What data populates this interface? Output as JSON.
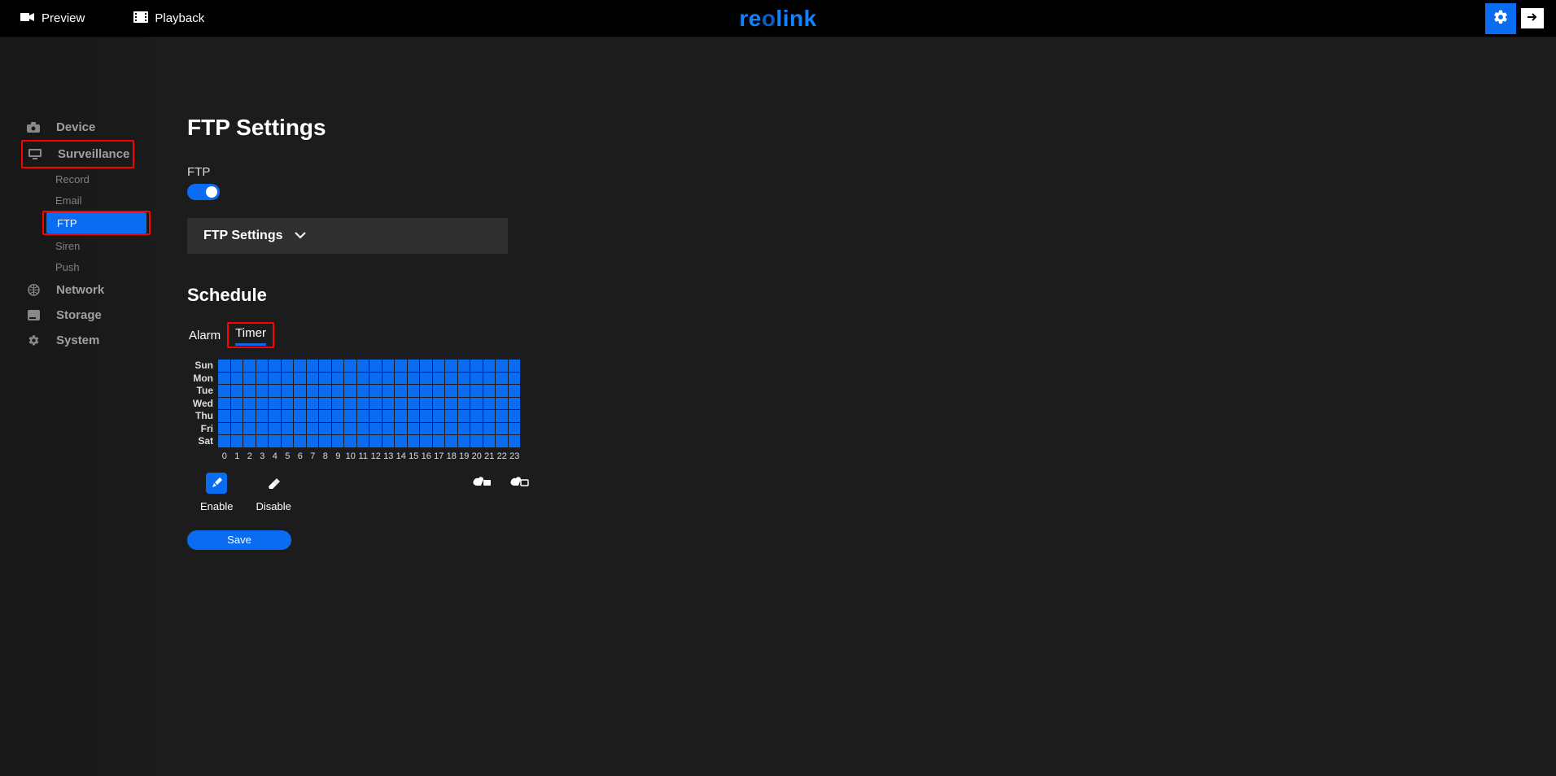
{
  "topbar": {
    "preview_label": "Preview",
    "playback_label": "Playback",
    "brand_a": "re",
    "brand_b": "o",
    "brand_c": "link"
  },
  "colors": {
    "accent": "#0a6cf1",
    "highlight_border": "#f00",
    "bg": "#1c1c1c",
    "sidebar": "#181818",
    "panel": "#2f2f2f",
    "text_muted": "#a0a0a0"
  },
  "sidebar": {
    "items": {
      "device": {
        "label": "Device"
      },
      "surveillance": {
        "label": "Surveillance",
        "highlighted": true
      },
      "network": {
        "label": "Network"
      },
      "storage": {
        "label": "Storage"
      },
      "system": {
        "label": "System"
      }
    },
    "surveillance_sub": {
      "record": {
        "label": "Record"
      },
      "email": {
        "label": "Email"
      },
      "ftp": {
        "label": "FTP",
        "active": true,
        "highlighted": true
      },
      "siren": {
        "label": "Siren"
      },
      "push": {
        "label": "Push"
      }
    }
  },
  "page": {
    "title": "FTP Settings",
    "ftp_label": "FTP",
    "ftp_enabled": true,
    "expander_label": "FTP Settings",
    "schedule_title": "Schedule",
    "tabs": {
      "alarm": "Alarm",
      "timer": "Timer",
      "active": "timer",
      "timer_highlighted": true
    },
    "schedule": {
      "days": [
        "Sun",
        "Mon",
        "Tue",
        "Wed",
        "Thu",
        "Fri",
        "Sat"
      ],
      "hours": [
        "0",
        "1",
        "2",
        "3",
        "4",
        "5",
        "6",
        "7",
        "8",
        "9",
        "10",
        "11",
        "12",
        "13",
        "14",
        "15",
        "16",
        "17",
        "18",
        "19",
        "20",
        "21",
        "22",
        "23"
      ],
      "cell_enabled_color": "#0a6cf1",
      "all_enabled": true
    },
    "tools": {
      "enable_label": "Enable",
      "disable_label": "Disable",
      "active": "enable"
    },
    "save_label": "Save"
  }
}
